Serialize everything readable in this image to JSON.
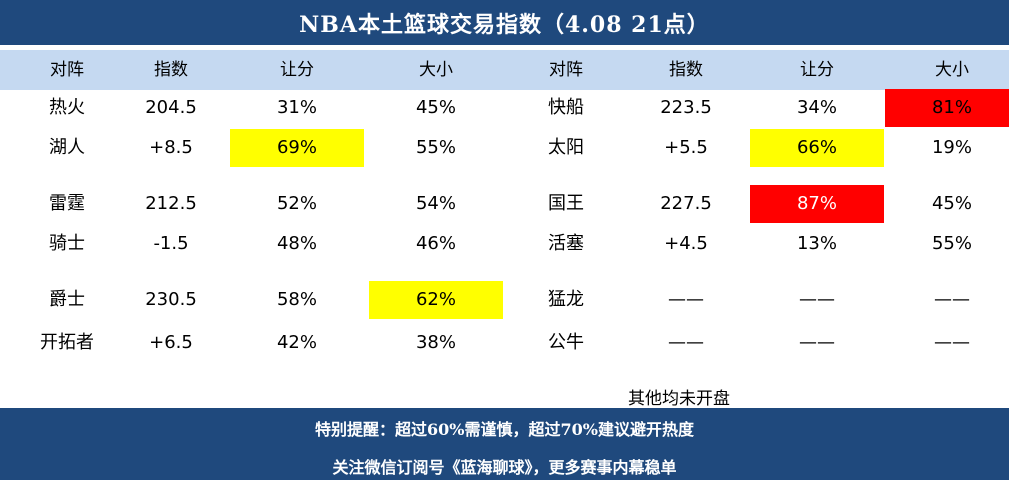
{
  "title": "NBA本土篮球交易指数（4.08 21点）",
  "headers": {
    "left": [
      "对阵",
      "指数",
      "让分",
      "大小"
    ],
    "right": [
      "对阵",
      "指数",
      "让分",
      "大小"
    ]
  },
  "left_rows": [
    [
      "热火",
      "204.5",
      "31%",
      "45%"
    ],
    [
      "湖人",
      "+8.5",
      "69%",
      "55%"
    ],
    [
      "雷霆",
      "212.5",
      "52%",
      "54%"
    ],
    [
      "骑士",
      "-1.5",
      "48%",
      "46%"
    ],
    [
      "爵士",
      "230.5",
      "58%",
      "62%"
    ],
    [
      "开拓者",
      "+6.5",
      "42%",
      "38%"
    ]
  ],
  "right_rows": [
    [
      "快船",
      "223.5",
      "34%",
      "81%"
    ],
    [
      "太阳",
      "+5.5",
      "66%",
      "19%"
    ],
    [
      "国王",
      "227.5",
      "87%",
      "45%"
    ],
    [
      "活塞",
      "+4.5",
      "13%",
      "55%"
    ],
    [
      "猛龙",
      "——",
      "——",
      "——"
    ],
    [
      "公牛",
      "——",
      "——",
      "——"
    ]
  ],
  "highlight_colors": {
    "yellow": "#ffff00",
    "red": "#ff0000"
  },
  "note": "其他均未开盘",
  "footer": {
    "line1": "特别提醒：超过60%需谨慎，超过70%建议避开热度",
    "line2": "关注微信订阅号《蓝海聊球》，更多赛事内幕稳单"
  }
}
